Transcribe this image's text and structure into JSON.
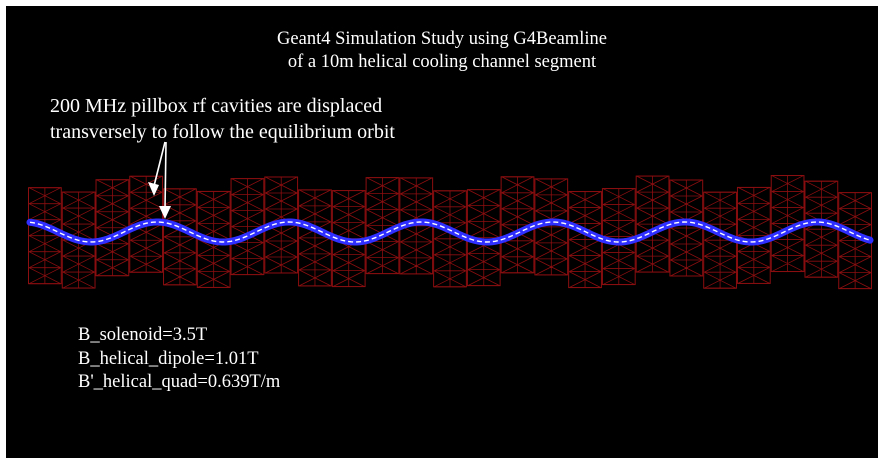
{
  "title": {
    "line1": "Geant4 Simulation Study using G4Beamline",
    "line2": "of a 10m helical cooling channel segment"
  },
  "annotation": {
    "line1": "200 MHz pillbox rf cavities are displaced",
    "line2": "transversely to follow the equilibrium orbit"
  },
  "parameters": [
    "B_solenoid=3.5T",
    "B_helical_dipole=1.01T",
    "B'_helical_quad=0.639T/m"
  ],
  "colors": {
    "background": "#000000",
    "text": "#ffffff",
    "cavity": "#8b0e10",
    "beam": "#2f2fff",
    "orbit_trace": "#ffffff"
  }
}
